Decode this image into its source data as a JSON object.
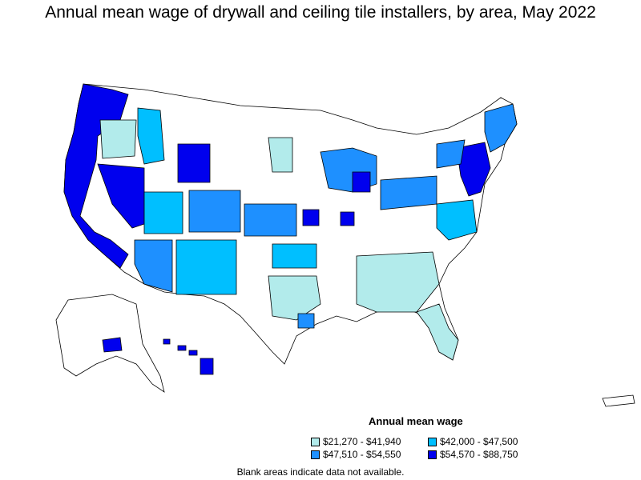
{
  "title": "Annual mean wage of drywall and ceiling tile installers, by area, May 2022",
  "legend": {
    "title": "Annual mean wage",
    "items": [
      {
        "label": "$21,270 - $41,940",
        "color": "#b2ebeb"
      },
      {
        "label": "$42,000 - $47,500",
        "color": "#00bfff"
      },
      {
        "label": "$47,510 - $54,550",
        "color": "#1e90ff"
      },
      {
        "label": "$54,570 - $88,750",
        "color": "#0000ee"
      }
    ]
  },
  "footnote": "Blank areas indicate data not available.",
  "colors": {
    "no_data": "#ffffff",
    "border": "#000000"
  }
}
